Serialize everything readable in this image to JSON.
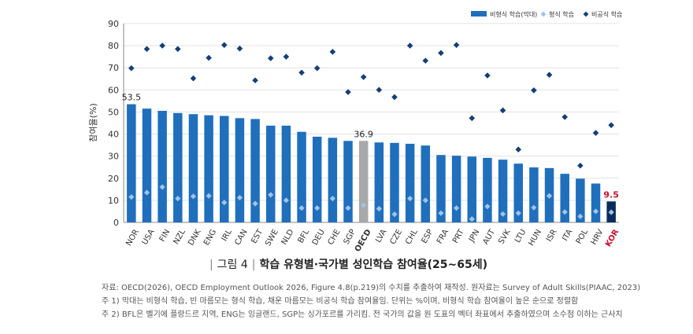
{
  "chart_data": {
    "type": "bar",
    "categories": [
      "NOR",
      "USA",
      "FIN",
      "NZL",
      "DNK",
      "ENG",
      "IRL",
      "CAN",
      "EST",
      "SWE",
      "NLD",
      "BFL",
      "DEU",
      "CHE",
      "SGP",
      "OECD",
      "LVA",
      "CZE",
      "CHL",
      "ESP",
      "FRA",
      "PRT",
      "JPN",
      "AUT",
      "SVK",
      "LTU",
      "HUN",
      "ISR",
      "ITA",
      "POL",
      "HRV",
      "KOR"
    ],
    "series": [
      {
        "name": "비형식 학습(막대)",
        "values": [
          53.5,
          51.5,
          50.5,
          49.5,
          49.0,
          48.5,
          48.2,
          47.2,
          46.8,
          43.8,
          43.8,
          41.0,
          38.8,
          38.3,
          36.9,
          36.9,
          36.2,
          36.0,
          35.6,
          34.8,
          30.5,
          30.2,
          29.8,
          29.2,
          28.4,
          26.6,
          24.9,
          24.6,
          22.0,
          19.8,
          17.6,
          9.5
        ]
      },
      {
        "name": "형식 학습",
        "values": [
          11.5,
          13.5,
          16.0,
          10.8,
          11.8,
          12.0,
          9.0,
          11.2,
          8.5,
          12.5,
          10.0,
          6.5,
          6.5,
          10.8,
          6.5,
          7.8,
          6.2,
          3.7,
          10.8,
          10.0,
          4.2,
          6.5,
          1.5,
          7.2,
          3.8,
          4.2,
          6.7,
          12.0,
          4.7,
          2.7,
          5.0,
          4.6
        ]
      },
      {
        "name": "비공식 학습",
        "values": [
          69.8,
          78.5,
          80.0,
          78.5,
          65.2,
          74.5,
          80.3,
          78.7,
          64.3,
          74.3,
          75.0,
          67.8,
          69.8,
          77.2,
          59.0,
          65.8,
          60.0,
          56.7,
          80.0,
          73.2,
          76.7,
          80.3,
          47.2,
          66.5,
          50.7,
          33.0,
          59.8,
          66.8,
          47.7,
          25.7,
          40.5,
          44.0
        ]
      }
    ],
    "highlight_values": {
      "NOR": "53.5",
      "OECD": "36.9",
      "KOR": "9.5"
    },
    "ylabel": "참여율(%)",
    "ylim": [
      0,
      90
    ],
    "yticks": [
      "0",
      "10",
      "20",
      "30",
      "40",
      "50",
      "60",
      "70",
      "80",
      "90"
    ],
    "legend": [
      "비형식 학습(막대)",
      "형식 학습",
      "비공식 학습"
    ],
    "legend_position": "top-right",
    "colors": {
      "bar": "#1f6fbd",
      "oecd_bar": "#a8a8a8",
      "kor_bar": "#0a2b5c",
      "formal": "#9ec4ea",
      "informal": "#143f77",
      "kor_label": "#c8102e",
      "grid": "#e2e2e2"
    }
  },
  "caption": {
    "figure_label": "그림 4",
    "title": "학습 유형별·국가별 성인학습 참여율(25~65세)"
  },
  "notes": {
    "source": "자료: OECD(2026), OECD Employment Outlook 2026, Figure 4.8(p.219)의 수치를 추출하여 재작성. 원자료는 Survey of Adult Skills(PIAAC, 2023)",
    "note1": "주 1) 막대는 비형식 학습, 빈 마름모는 형식 학습, 채운 마름모는 비공식 학습 참여율임. 단위는 %이며, 비형식 학습 참여율이 높은 순으로 정렬함",
    "note2": "주 2) BFL은 벨기에 플랑드르 지역, ENG는 잉글랜드, SGP는 싱가포르를 가리킴. 전 국가의 값을 원 도표의 벡터 좌표에서 추출하였으며 소수점 이하는 근사치"
  }
}
